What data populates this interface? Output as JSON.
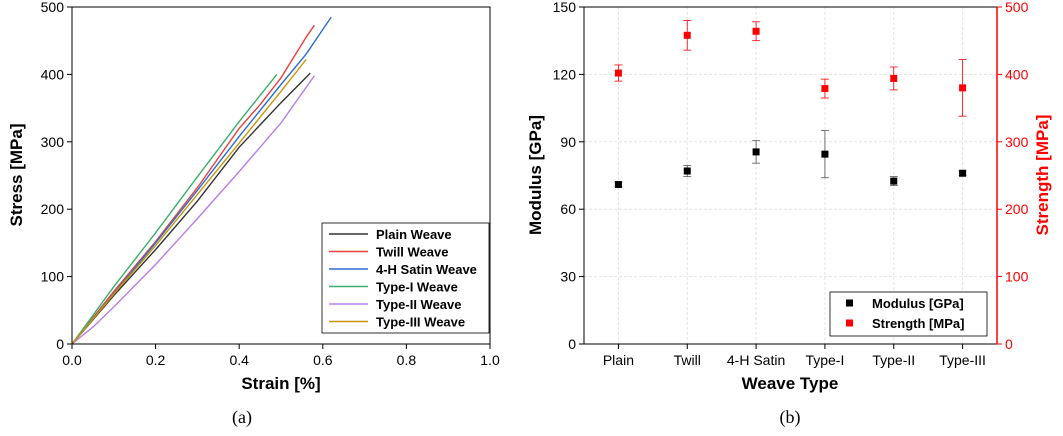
{
  "chart_data": [
    {
      "type": "line",
      "panel_label": "(a)",
      "xlabel": "Strain [%]",
      "ylabel": "Stress [MPa]",
      "xlim": [
        0.0,
        1.0
      ],
      "ylim": [
        0,
        500
      ],
      "xticks": [
        "0.0",
        "0.2",
        "0.4",
        "0.6",
        "0.8",
        "1.0"
      ],
      "yticks": [
        "0",
        "100",
        "200",
        "300",
        "400",
        "500"
      ],
      "legend_position": "lower-right",
      "series": [
        {
          "name": "Plain Weave",
          "color": "#333333",
          "x": [
            0,
            0.1,
            0.2,
            0.3,
            0.4,
            0.45,
            0.5,
            0.57
          ],
          "y": [
            0,
            72,
            140,
            212,
            292,
            325,
            358,
            402
          ]
        },
        {
          "name": "Twill Weave",
          "color": "#e8413f",
          "x": [
            0,
            0.1,
            0.2,
            0.3,
            0.4,
            0.45,
            0.5,
            0.56,
            0.58
          ],
          "y": [
            0,
            78,
            152,
            232,
            320,
            355,
            395,
            455,
            473
          ]
        },
        {
          "name": "4-H Satin Weave",
          "color": "#2a6fd1",
          "x": [
            0,
            0.1,
            0.2,
            0.3,
            0.4,
            0.5,
            0.56,
            0.62
          ],
          "y": [
            0,
            75,
            150,
            228,
            308,
            385,
            430,
            485
          ]
        },
        {
          "name": "Type-I Weave",
          "color": "#3cae6c",
          "x": [
            0,
            0.1,
            0.2,
            0.3,
            0.4,
            0.49
          ],
          "y": [
            0,
            85,
            165,
            248,
            330,
            400
          ]
        },
        {
          "name": "Type-II Weave",
          "color": "#b680e6",
          "x": [
            0,
            0.05,
            0.1,
            0.2,
            0.3,
            0.4,
            0.5,
            0.58
          ],
          "y": [
            0,
            25,
            55,
            118,
            186,
            256,
            328,
            398
          ]
        },
        {
          "name": "Type-III Weave",
          "color": "#c8960c",
          "x": [
            0,
            0.1,
            0.2,
            0.3,
            0.4,
            0.5,
            0.56
          ],
          "y": [
            0,
            74,
            146,
            222,
            298,
            375,
            422
          ]
        }
      ]
    },
    {
      "type": "scatter",
      "panel_label": "(b)",
      "xlabel": "Weave Type",
      "ylabel": "Modulus [GPa]",
      "ylabel_right": "Strength [MPa]",
      "categories": [
        "Plain",
        "Twill",
        "4-H Satin",
        "Type-I",
        "Type-II",
        "Type-III"
      ],
      "ylim": [
        0,
        150
      ],
      "ylim_right": [
        0,
        500
      ],
      "yticks": [
        "0",
        "30",
        "60",
        "90",
        "120",
        "150"
      ],
      "yticks_right": [
        "0",
        "100",
        "200",
        "300",
        "400",
        "500"
      ],
      "grid": true,
      "legend_position": "lower-right",
      "series": [
        {
          "name": "Modulus [GPa]",
          "color": "#000000",
          "axis": "left",
          "values": [
            71,
            77,
            85.5,
            84.5,
            72.5,
            76
          ],
          "errors": [
            1.0,
            2.5,
            5.0,
            10.5,
            2.0,
            1.0
          ]
        },
        {
          "name": "Strength [MPa]",
          "color": "#ff0000",
          "axis": "right",
          "values": [
            402,
            458,
            464,
            379,
            394,
            380
          ],
          "errors": [
            12,
            22,
            14,
            14,
            17,
            42
          ]
        }
      ]
    }
  ],
  "colors": {
    "strength_axis": "#ff0000",
    "modulus_axis": "#000000"
  }
}
